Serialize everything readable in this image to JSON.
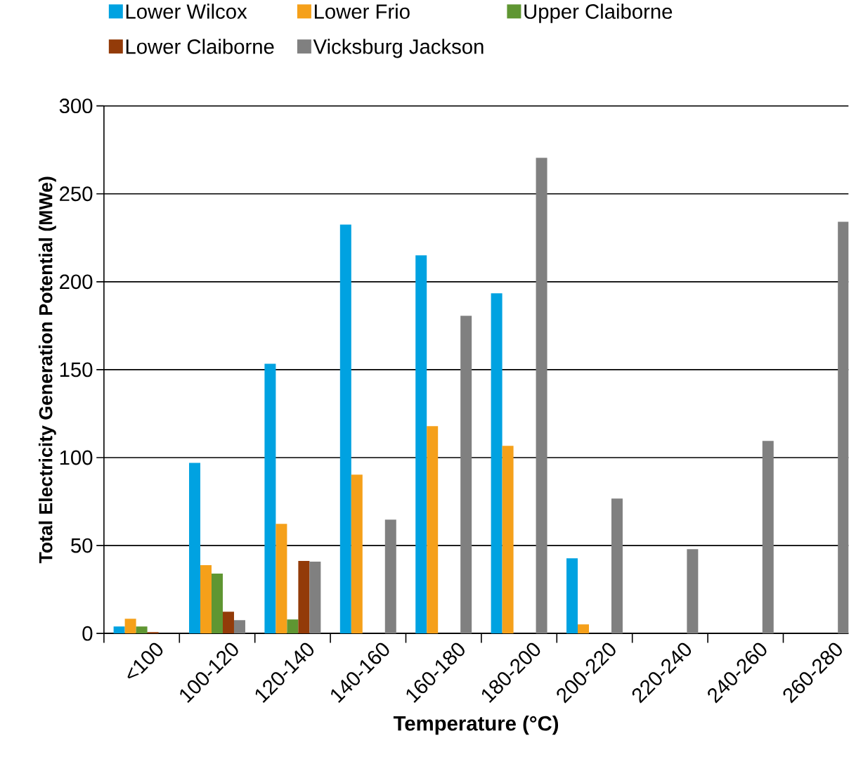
{
  "chart_data": {
    "type": "bar",
    "xlabel": "Temperature (°C)",
    "ylabel": "Total Electricity Generation Potential (MWe)",
    "categories": [
      "<100",
      "100-120",
      "120-140",
      "140-160",
      "160-180",
      "180-200",
      "200-220",
      "220-240",
      "240-260",
      "260-280"
    ],
    "series": [
      {
        "name": "Lower Wilcox",
        "color": "#00a2e1",
        "values": [
          4,
          97,
          153.4,
          232.5,
          215,
          193.4,
          42.7,
          null,
          null,
          null
        ]
      },
      {
        "name": "Lower Frio",
        "color": "#f5a01a",
        "values": [
          8.4,
          38.8,
          62.3,
          90.3,
          117.9,
          106.7,
          5.2,
          null,
          null,
          null
        ]
      },
      {
        "name": "Upper Claiborne",
        "color": "#5f9632",
        "values": [
          4,
          34,
          8,
          null,
          null,
          null,
          null,
          null,
          null,
          null
        ]
      },
      {
        "name": "Lower Claiborne",
        "color": "#933b09",
        "values": [
          0.8,
          12.4,
          41.2,
          null,
          null,
          null,
          null,
          null,
          null,
          null
        ]
      },
      {
        "name": "Vicksburg Jackson",
        "color": "#808080",
        "values": [
          null,
          7.6,
          40.8,
          64.7,
          180.6,
          270.5,
          76.7,
          47.9,
          109.5,
          234.1
        ]
      }
    ],
    "ylim": [
      0,
      300
    ],
    "yticks": [
      0,
      50,
      100,
      150,
      200,
      250,
      300
    ],
    "grid": "y",
    "legend": "top"
  }
}
